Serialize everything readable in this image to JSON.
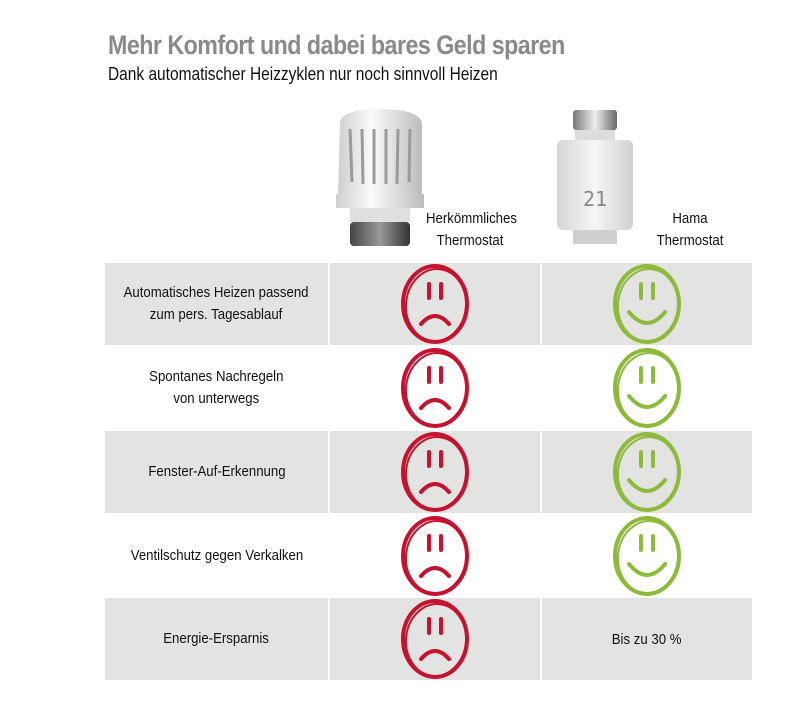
{
  "header": {
    "title": "Mehr Komfort und dabei bares Geld sparen",
    "subtitle": "Dank automatischer Heizzyklen nur noch sinnvoll Heizen"
  },
  "products": [
    {
      "label_line1": "Herkömmliches",
      "label_line2": "Thermostat"
    },
    {
      "label_line1": "Hama",
      "label_line2": "Thermostat",
      "display": "21"
    }
  ],
  "colors": {
    "sad": "#c4122f",
    "happy": "#8dba3b",
    "row_gray": "#e3e3e2"
  },
  "rows": [
    {
      "feature": "Automatisches Heizen passend\nzum pers. Tagesablauf",
      "conventional": "sad-face-icon",
      "hama": "happy-face-icon"
    },
    {
      "feature": "Spontanes Nachregeln\nvon unterwegs",
      "conventional": "sad-face-icon",
      "hama": "happy-face-icon"
    },
    {
      "feature": "Fenster-Auf-Erkennung",
      "conventional": "sad-face-icon",
      "hama": "happy-face-icon"
    },
    {
      "feature": "Ventilschutz gegen Verkalken",
      "conventional": "sad-face-icon",
      "hama": "happy-face-icon"
    },
    {
      "feature": "Energie-Ersparnis",
      "conventional": "sad-face-icon",
      "hama_text": "Bis zu 30 %"
    }
  ]
}
